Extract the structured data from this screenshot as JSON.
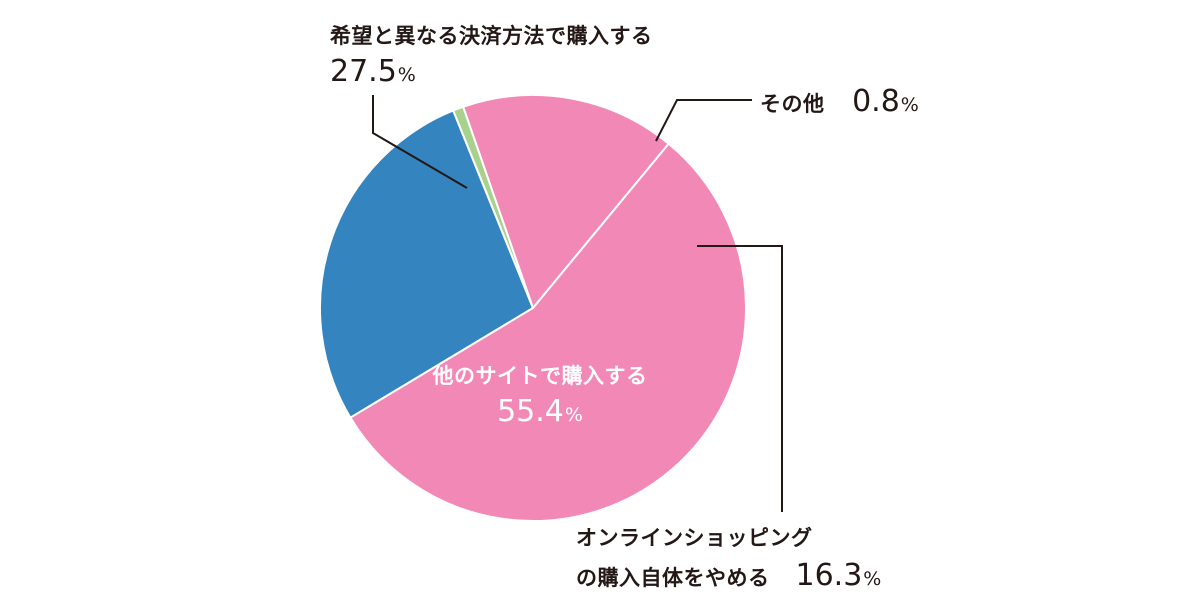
{
  "chart_data": {
    "type": "pie",
    "start_angle_deg": 211,
    "direction": "clockwise",
    "slices": [
      {
        "label": "希望と異なる決済方法で購入する",
        "value": 27.5,
        "value_text": "27.5",
        "color": "#3485bf"
      },
      {
        "label": "その他",
        "value": 0.8,
        "value_text": "0.8",
        "color": "#a9d18e"
      },
      {
        "label": "オンラインショッピングの購入自体をやめる",
        "label_line1": "オンラインショッピング",
        "label_line2": "の購入自体をやめる",
        "value": 16.3,
        "value_text": "16.3",
        "color": "#f188b6"
      },
      {
        "label": "他のサイトで購入する",
        "value": 55.4,
        "value_text": "55.4",
        "color": "#f188b6"
      }
    ],
    "percent_sign": "%"
  }
}
